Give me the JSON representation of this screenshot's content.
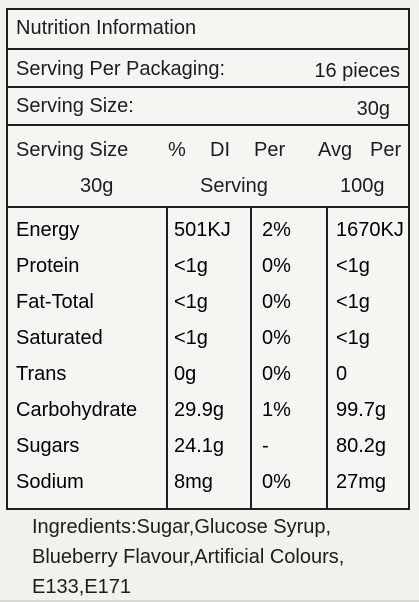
{
  "title": "Nutrition Information",
  "serving_per_packaging": {
    "label": "Serving Per Packaging:",
    "value": "16 pieces"
  },
  "serving_size": {
    "label": "Serving Size:",
    "value": "30g"
  },
  "header": {
    "line1": [
      "Serving Size",
      "%",
      "DI",
      "Per",
      "Avg",
      "Per"
    ],
    "line2": [
      "30g",
      "Serving",
      "100g"
    ]
  },
  "rows": [
    {
      "name": "Energy",
      "per_serving": "501KJ",
      "di": "2%",
      "per_100g": "1670KJ"
    },
    {
      "name": "Protein",
      "per_serving": "<1g",
      "di": "0%",
      "per_100g": "<1g"
    },
    {
      "name": "Fat-Total",
      "per_serving": "<1g",
      "di": "0%",
      "per_100g": "<1g"
    },
    {
      "name": "Saturated",
      "per_serving": "<1g",
      "di": "0%",
      "per_100g": "<1g"
    },
    {
      "name": "Trans",
      "per_serving": "0g",
      "di": "0%",
      "per_100g": "0"
    },
    {
      "name": "Carbohydrate",
      "per_serving": "29.9g",
      "di": "1%",
      "per_100g": "99.7g"
    },
    {
      "name": "Sugars",
      "per_serving": "24.1g",
      "di": "-",
      "per_100g": "80.2g"
    },
    {
      "name": "Sodium",
      "per_serving": "8mg",
      "di": "0%",
      "per_100g": "27mg"
    }
  ],
  "ingredients": {
    "lines": [
      "Ingredients:Sugar,Glucose Syrup,",
      "Blueberry Flavour,Artificial Colours,",
      "E133,E171"
    ]
  }
}
